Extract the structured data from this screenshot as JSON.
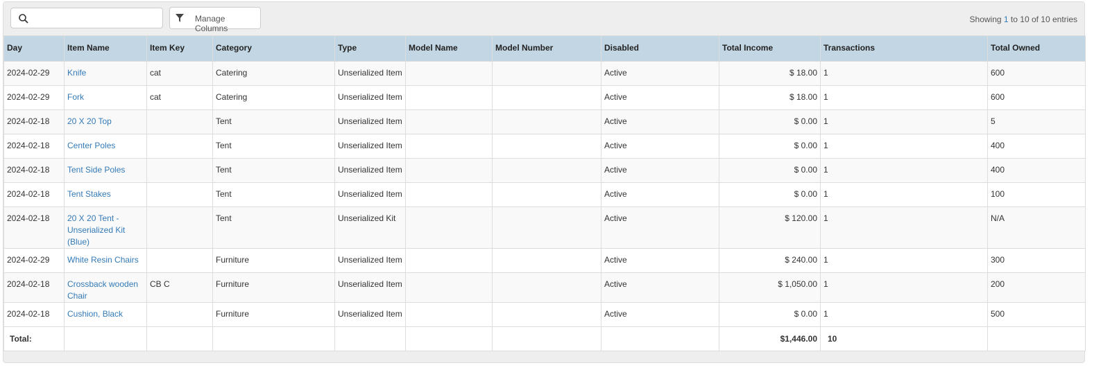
{
  "toolbar": {
    "search_placeholder": "",
    "manage_columns": "Manage Columns",
    "info_prefix": "Showing ",
    "info_start": "1",
    "info_rest": " to 10 of 10 entries"
  },
  "columns": [
    "Day",
    "Item Name",
    "Item Key",
    "Category",
    "Type",
    "Model Name",
    "Model Number",
    "Disabled",
    "Total Income",
    "Transactions",
    "Total Owned"
  ],
  "rows": [
    [
      "2024-02-29",
      "Knife",
      "cat",
      "Catering",
      "Unserialized Item",
      "",
      "",
      "Active",
      "$ 18.00",
      "1",
      "600"
    ],
    [
      "2024-02-29",
      "Fork",
      "cat",
      "Catering",
      "Unserialized Item",
      "",
      "",
      "Active",
      "$ 18.00",
      "1",
      "600"
    ],
    [
      "2024-02-18",
      "20 X 20 Top",
      "",
      "Tent",
      "Unserialized Item",
      "",
      "",
      "Active",
      "$ 0.00",
      "1",
      "5"
    ],
    [
      "2024-02-18",
      "Center Poles",
      "",
      "Tent",
      "Unserialized Item",
      "",
      "",
      "Active",
      "$ 0.00",
      "1",
      "400"
    ],
    [
      "2024-02-18",
      "Tent Side Poles",
      "",
      "Tent",
      "Unserialized Item",
      "",
      "",
      "Active",
      "$ 0.00",
      "1",
      "400"
    ],
    [
      "2024-02-18",
      "Tent Stakes",
      "",
      "Tent",
      "Unserialized Item",
      "",
      "",
      "Active",
      "$ 0.00",
      "1",
      "100"
    ],
    [
      "2024-02-18",
      "20 X 20 Tent - Unserialized Kit (Blue)",
      "",
      "Tent",
      "Unserialized Kit",
      "",
      "",
      "Active",
      "$ 120.00",
      "1",
      "N/A"
    ],
    [
      "2024-02-29",
      "White Resin Chairs",
      "",
      "Furniture",
      "Unserialized Item",
      "",
      "",
      "Active",
      "$ 240.00",
      "1",
      "300"
    ],
    [
      "2024-02-18",
      "Crossback wooden Chair",
      "CB C",
      "Furniture",
      "Unserialized Item",
      "",
      "",
      "Active",
      "$ 1,050.00",
      "1",
      "200"
    ],
    [
      "2024-02-18",
      "Cushion, Black",
      "",
      "Furniture",
      "Unserialized Item",
      "",
      "",
      "Active",
      "$ 0.00",
      "1",
      "500"
    ]
  ],
  "footer": {
    "label": "Total:",
    "total_income": "$1,446.00",
    "transactions": "10"
  }
}
